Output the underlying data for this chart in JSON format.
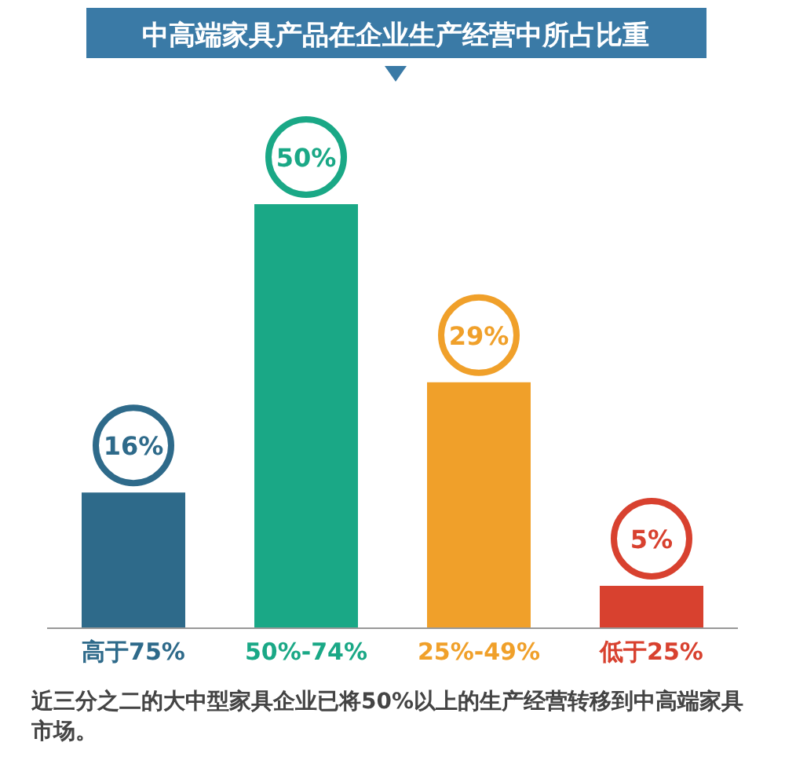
{
  "chart_data": {
    "type": "bar",
    "title": "中高端家具产品在企业生产经营中所占比重",
    "categories": [
      "高于75%",
      "50%-74%",
      "25%-49%",
      "低于25%"
    ],
    "values": [
      16,
      50,
      29,
      5
    ],
    "colors": [
      "#2e6a8a",
      "#1aa886",
      "#f0a02a",
      "#d8412f"
    ],
    "value_labels": [
      "16%",
      "50%",
      "29%",
      "5%"
    ],
    "annotations": [
      "近三分之二的大中型家具企业已将50%以上的生产经营转移到中高端家具市场。"
    ]
  }
}
